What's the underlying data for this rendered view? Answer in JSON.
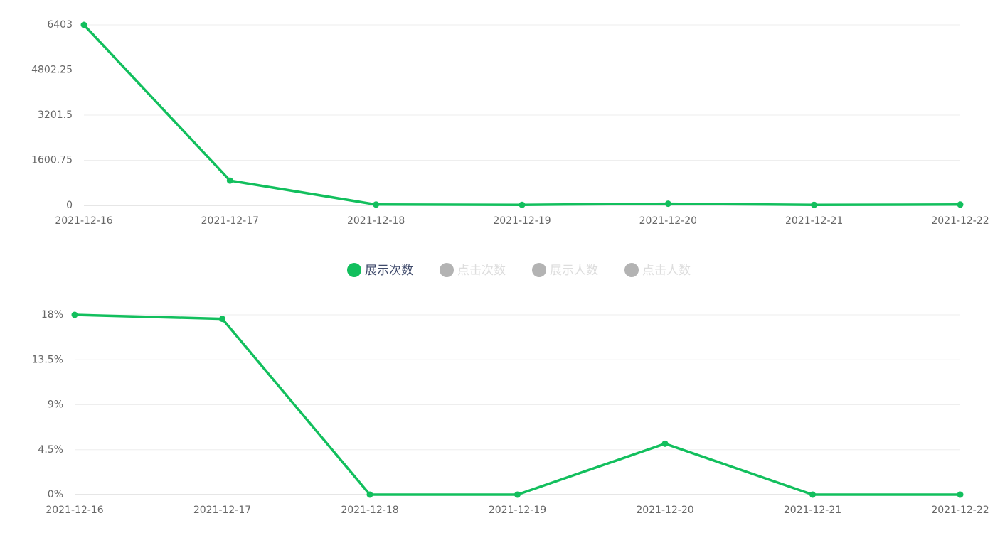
{
  "chart_data": [
    {
      "type": "line",
      "x": [
        "2021-12-16",
        "2021-12-17",
        "2021-12-18",
        "2021-12-19",
        "2021-12-20",
        "2021-12-21",
        "2021-12-22"
      ],
      "series": [
        {
          "name": "展示次数",
          "color": "#12bf5d",
          "values": [
            6403,
            880,
            30,
            20,
            60,
            20,
            30
          ]
        }
      ],
      "ylim": [
        0,
        6403
      ],
      "yticks": [
        0,
        1600.75,
        3201.5,
        4802.25,
        6403
      ],
      "grid": true
    },
    {
      "type": "line",
      "x": [
        "2021-12-16",
        "2021-12-17",
        "2021-12-18",
        "2021-12-19",
        "2021-12-20",
        "2021-12-21",
        "2021-12-22"
      ],
      "series": [
        {
          "name": "展示次数",
          "color": "#12bf5d",
          "values": [
            18,
            17.6,
            0,
            0,
            5.1,
            0,
            0
          ]
        }
      ],
      "ylim": [
        0,
        18
      ],
      "yticks": [
        {
          "value": 0,
          "label": "0%"
        },
        {
          "value": 4.5,
          "label": "4.5%"
        },
        {
          "value": 9,
          "label": "9%"
        },
        {
          "value": 13.5,
          "label": "13.5%"
        },
        {
          "value": 18,
          "label": "18%"
        }
      ],
      "grid": true
    }
  ],
  "legend": [
    {
      "name": "展示次数",
      "color": "#12bf5d",
      "active": true
    },
    {
      "name": "点击次数",
      "color": "#b3b3b3",
      "active": false
    },
    {
      "name": "展示人数",
      "color": "#b3b3b3",
      "active": false
    },
    {
      "name": "点击人数",
      "color": "#b3b3b3",
      "active": false
    }
  ]
}
